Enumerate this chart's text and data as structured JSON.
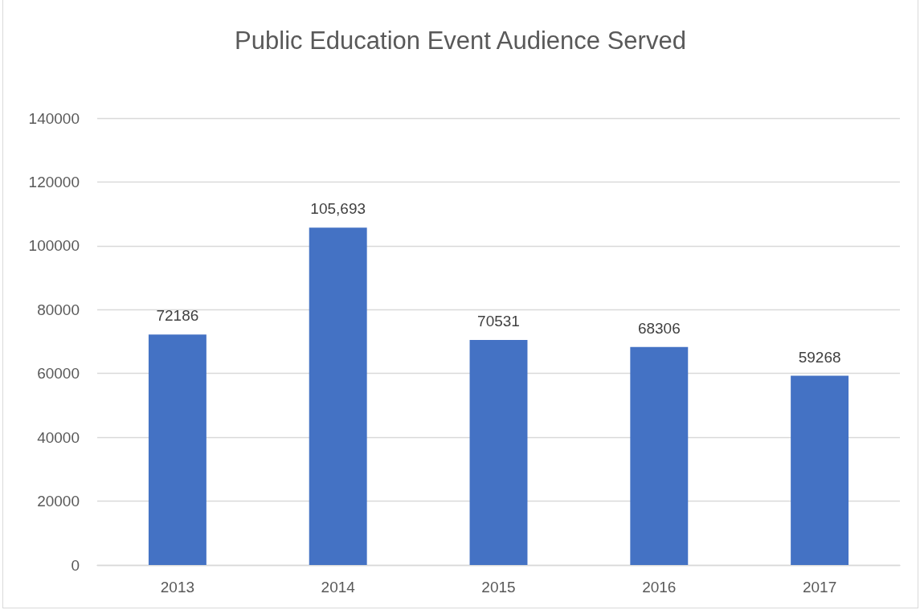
{
  "chart_data": {
    "type": "bar",
    "title": "Public Education Event Audience Served",
    "categories": [
      "2013",
      "2014",
      "2015",
      "2016",
      "2017"
    ],
    "values": [
      72186,
      105693,
      70531,
      68306,
      59268
    ],
    "value_labels": [
      "72186",
      "105,693",
      "70531",
      "68306",
      "59268"
    ],
    "color": "#4472c4",
    "ylim": [
      0,
      140000
    ],
    "yticks": [
      0,
      20000,
      40000,
      60000,
      80000,
      100000,
      120000,
      140000
    ],
    "grid": "y"
  }
}
